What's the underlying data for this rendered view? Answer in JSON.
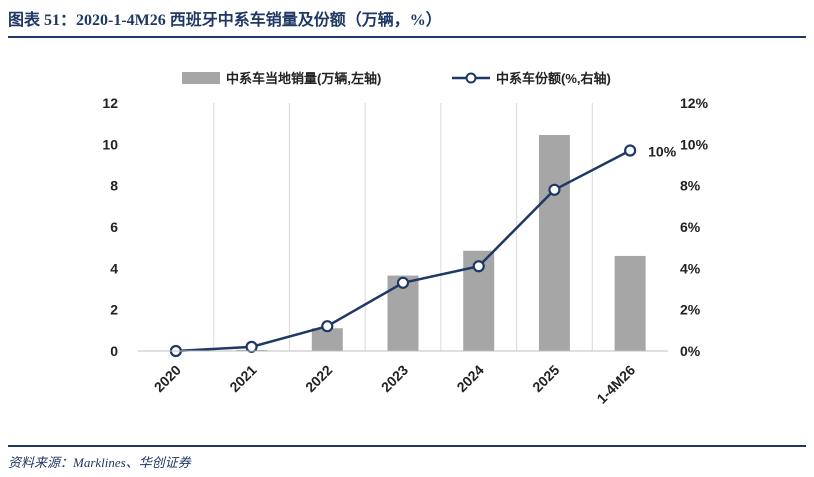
{
  "header": {
    "title": "图表 51：2020-1-4M26 西班牙中系车销量及份额（万辆，%）"
  },
  "footer": {
    "source": "资料来源：Marklines、华创证券"
  },
  "colors": {
    "bar": "#a6a6a6",
    "line": "#1f3864",
    "rule": "#1f3864",
    "grid": "#d9d9d9"
  },
  "chart_data": {
    "type": "bar+line",
    "categories": [
      "2020",
      "2021",
      "2022",
      "2023",
      "2024",
      "2025",
      "1-4M26"
    ],
    "series": [
      {
        "name": "中系车当地销量(万辆,左轴)",
        "type": "bar",
        "axis": "left",
        "values": [
          0.0,
          0.05,
          1.1,
          3.65,
          4.85,
          10.45,
          4.6
        ]
      },
      {
        "name": "中系车份额(%,右轴)",
        "type": "line",
        "axis": "right",
        "values": [
          0.0,
          0.2,
          1.2,
          3.3,
          4.1,
          7.8,
          9.7
        ]
      }
    ],
    "left_axis": {
      "ylim": [
        0,
        12
      ],
      "ticks": [
        "0",
        "2",
        "4",
        "6",
        "8",
        "10",
        "12"
      ]
    },
    "right_axis": {
      "ylim": [
        0,
        12
      ],
      "ticks": [
        "0%",
        "2%",
        "4%",
        "6%",
        "8%",
        "10%",
        "12%"
      ]
    },
    "annotations": [
      {
        "text": "10%",
        "category": "1-4M26",
        "series": "中系车份额(%,右轴)"
      }
    ],
    "grid": "vertical",
    "legend_position": "top-center"
  }
}
